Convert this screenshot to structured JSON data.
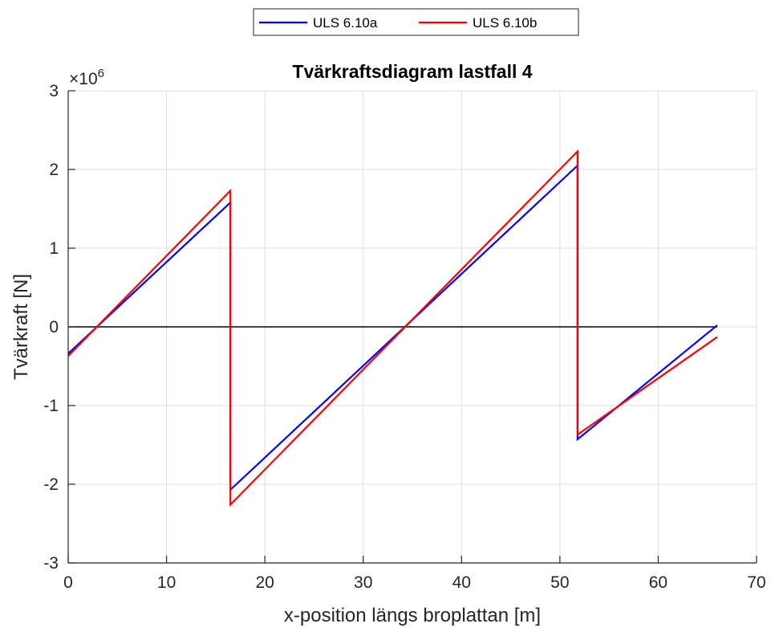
{
  "chart_data": {
    "type": "line",
    "title": "Tvärkraftsdiagram lastfall 4",
    "xlabel": "x-position längs broplattan [m]",
    "ylabel": "Tvärkraft [N]",
    "xlim": [
      0,
      70
    ],
    "ylim": [
      -3,
      3
    ],
    "y_exponent_base": "×10",
    "y_exponent_power": "6",
    "x_ticks": [
      0,
      10,
      20,
      30,
      40,
      50,
      60,
      70
    ],
    "y_ticks": [
      -3,
      -2,
      -1,
      0,
      1,
      2,
      3
    ],
    "grid": true,
    "legend_position": "top-center",
    "zero_line": true,
    "series": [
      {
        "name": "ULS 6.10a",
        "color": "#0000ff",
        "x": [
          0,
          16.5,
          16.5,
          51.8,
          51.8,
          66
        ],
        "y": [
          -0.34,
          1.58,
          -2.07,
          2.05,
          -1.43,
          0.02
        ]
      },
      {
        "name": "ULS 6.10b",
        "color": "#ff0000",
        "x": [
          0,
          16.5,
          16.5,
          51.8,
          51.8,
          66
        ],
        "y": [
          -0.37,
          1.73,
          -2.26,
          2.23,
          -1.37,
          -0.13
        ]
      }
    ]
  }
}
